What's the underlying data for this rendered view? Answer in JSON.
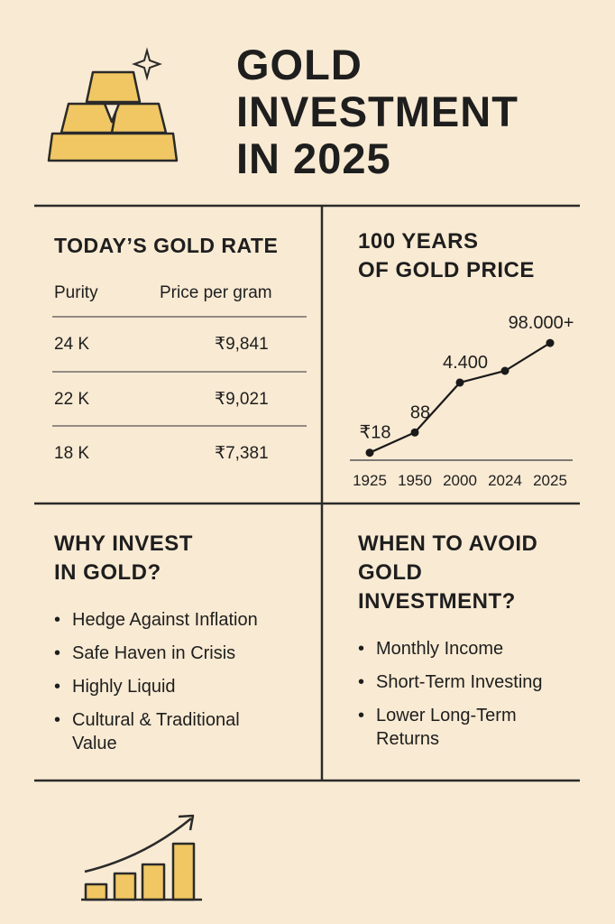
{
  "header": {
    "title_lines": [
      "GOLD",
      "INVESTMENT",
      "IN 2025"
    ]
  },
  "table": {
    "title": "TODAY’S GOLD RATE",
    "columns": [
      "Purity",
      "Price per gram"
    ],
    "rows": [
      [
        "24 K",
        "₹9,841"
      ],
      [
        "22 K",
        "₹9,021"
      ],
      [
        "18 K",
        "₹7,381"
      ]
    ]
  },
  "chart_data": {
    "type": "line",
    "title_lines": [
      "100 YEARS",
      "OF GOLD PRICE"
    ],
    "categories": [
      "1925",
      "1950",
      "2000",
      "2024",
      "2025"
    ],
    "values": [
      18,
      88,
      4400,
      11000,
      98000
    ],
    "value_labels": [
      "₹18",
      "88",
      "4.400",
      null,
      "98.000+"
    ],
    "log_scale": true,
    "ylim": [
      10,
      200000
    ],
    "color": "#1a1a1a"
  },
  "why": {
    "title_lines": [
      "WHY INVEST",
      "IN GOLD?"
    ],
    "items": [
      "Hedge Against Inflation",
      "Safe Haven in Crisis",
      "Highly Liquid",
      "Cultural & Traditional Value"
    ]
  },
  "avoid": {
    "title_lines": [
      "WHEN TO AVOID",
      "GOLD",
      "INVESTMENT?"
    ],
    "items": [
      "Monthly Income",
      "Short-Term Investing",
      "Lower Long-Term Returns"
    ]
  }
}
